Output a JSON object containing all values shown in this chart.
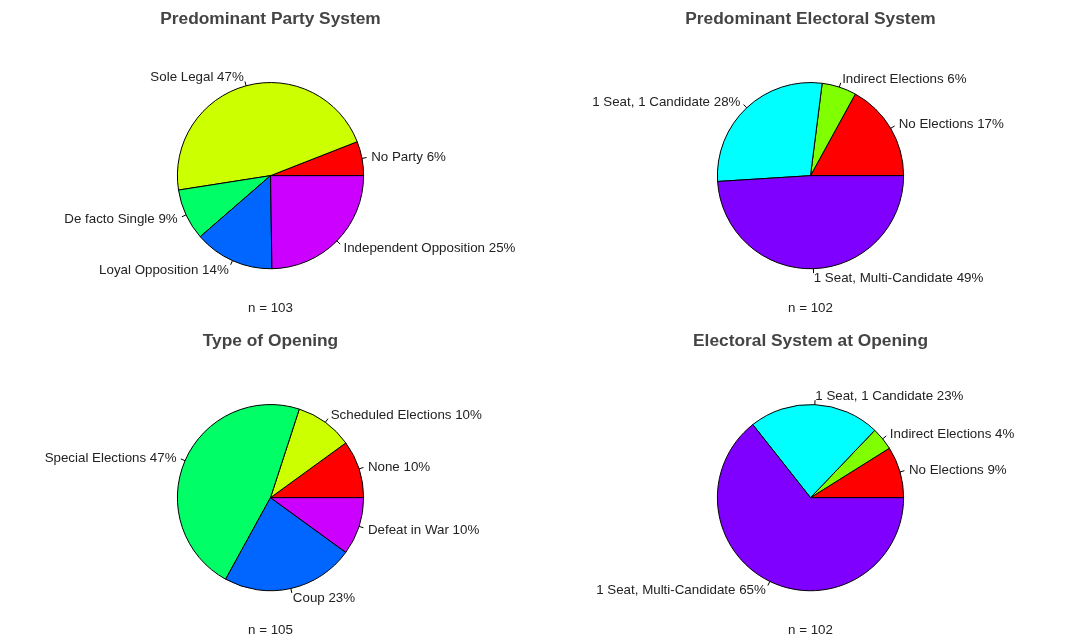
{
  "chart_data": [
    {
      "type": "pie",
      "title": "Predominant Party System",
      "categories": [
        "No Party",
        "Sole Legal",
        "De facto Single",
        "Loyal Opposition",
        "Independent Opposition"
      ],
      "values": [
        6,
        47,
        9,
        14,
        25
      ],
      "value_labels": [
        "6%",
        "47%",
        "9%",
        "14%",
        "25%"
      ],
      "colors": [
        "#ff0000",
        "#ccff00",
        "#00ff66",
        "#0066ff",
        "#cc00ff"
      ],
      "annotations": [
        "n = 103"
      ]
    },
    {
      "type": "pie",
      "title": "Predominant Electoral System",
      "categories": [
        "No Elections",
        "Indirect Elections",
        "1 Seat, 1 Candidate",
        "1 Seat, Multi-Candidate"
      ],
      "values": [
        17,
        6,
        28,
        49
      ],
      "value_labels": [
        "17%",
        "6%",
        "28%",
        "49%"
      ],
      "colors": [
        "#ff0000",
        "#80ff00",
        "#00ffff",
        "#8000ff"
      ],
      "annotations": [
        "n = 102"
      ]
    },
    {
      "type": "pie",
      "title": "Type of Opening",
      "categories": [
        "None",
        "Scheduled Elections",
        "Special Elections",
        "Coup",
        "Defeat in War"
      ],
      "values": [
        10,
        10,
        47,
        23,
        10
      ],
      "value_labels": [
        "10%",
        "10%",
        "47%",
        "23%",
        "10%"
      ],
      "colors": [
        "#ff0000",
        "#ccff00",
        "#00ff66",
        "#0066ff",
        "#cc00ff"
      ],
      "annotations": [
        "n = 105"
      ]
    },
    {
      "type": "pie",
      "title": "Electoral System at Opening",
      "categories": [
        "No Elections",
        "Indirect Elections",
        "1 Seat, 1 Candidate",
        "1 Seat, Multi-Candidate"
      ],
      "values": [
        9,
        4,
        23,
        65
      ],
      "value_labels": [
        "9%",
        "4%",
        "23%",
        "65%"
      ],
      "colors": [
        "#ff0000",
        "#80ff00",
        "#00ffff",
        "#8000ff"
      ],
      "annotations": [
        "n = 102"
      ]
    }
  ]
}
